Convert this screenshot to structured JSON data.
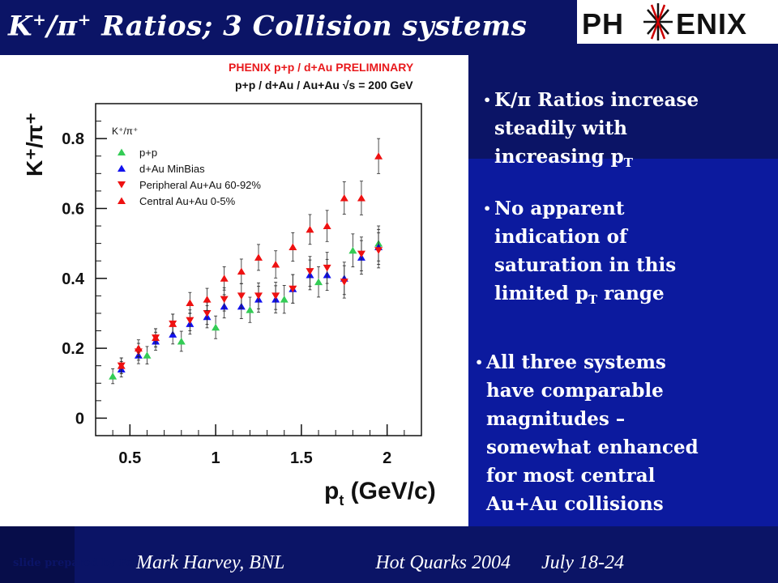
{
  "slide": {
    "title_main": "K",
    "title_sup1": "+",
    "title_slash": "/",
    "title_pi": "π",
    "title_sup2": "+",
    "title_rest": " Ratios; 3 Collision systems",
    "logo_left": "PH",
    "logo_right": "ENIX",
    "credit": "slide prepared by Felix Matathias",
    "bullet1_line1": "K/π Ratios increase",
    "bullet1_line2": "steadily with",
    "bullet1_line3": "increasing p",
    "bullet1_sub": "T",
    "bullet2_line1": "No apparent",
    "bullet2_line2": "indication of",
    "bullet2_line3": "saturation in this",
    "bullet2_line4_a": "limited p",
    "bullet2_line4_sub": "T",
    "bullet2_line4_b": " range",
    "bullet3_line1": "All three systems",
    "bullet3_line2": "have comparable",
    "bullet3_line3": "magnitudes –",
    "bullet3_line4": "somewhat enhanced",
    "bullet3_line5": "for most central",
    "bullet3_line6": "Au+Au collisions",
    "bullet_marker": "•",
    "footer_author": "Mark Harvey, BNL",
    "footer_event": "Hot Quarks 2004",
    "footer_date": "July 18-24"
  },
  "chart_data": {
    "type": "scatter",
    "title": "PHENIX p+p / d+Au PRELIMINARY",
    "subtitle": "p+p / d+Au / Au+Au  √s = 200 GeV",
    "xlabel": "p",
    "xlabel_sub": "t",
    "xlabel_unit": " (GeV/c)",
    "ylabel": "K⁺/π⁺",
    "legend_title": "K⁺/π⁺",
    "legend_placement": "top-left",
    "xlim": [
      0.3,
      2.2
    ],
    "ylim": [
      -0.05,
      0.9
    ],
    "xticks": [
      "0.5",
      "1",
      "1.5",
      "2"
    ],
    "yticks": [
      "0",
      "0.2",
      "0.4",
      "0.6",
      "0.8"
    ],
    "series": [
      {
        "name": "p+p",
        "color": "#33cc55",
        "marker": "triangle-up",
        "x": [
          0.4,
          0.6,
          0.8,
          1.0,
          1.2,
          1.4,
          1.6,
          1.8,
          1.95
        ],
        "y": [
          0.12,
          0.18,
          0.22,
          0.26,
          0.31,
          0.34,
          0.39,
          0.48,
          0.5
        ]
      },
      {
        "name": "d+Au MinBias",
        "color": "#1111ee",
        "marker": "triangle-up",
        "x": [
          0.45,
          0.55,
          0.65,
          0.75,
          0.85,
          0.95,
          1.05,
          1.15,
          1.25,
          1.35,
          1.45,
          1.55,
          1.65,
          1.75,
          1.85,
          1.95
        ],
        "y": [
          0.14,
          0.18,
          0.22,
          0.24,
          0.27,
          0.29,
          0.32,
          0.32,
          0.34,
          0.34,
          0.37,
          0.41,
          0.41,
          0.4,
          0.46,
          0.49
        ]
      },
      {
        "name": "Peripheral Au+Au 60-92%",
        "color": "#ee1111",
        "marker": "triangle-down",
        "x": [
          0.45,
          0.55,
          0.65,
          0.75,
          0.85,
          0.95,
          1.05,
          1.15,
          1.25,
          1.35,
          1.45,
          1.55,
          1.65,
          1.75,
          1.85,
          1.95
        ],
        "y": [
          0.15,
          0.19,
          0.23,
          0.27,
          0.28,
          0.3,
          0.34,
          0.35,
          0.35,
          0.35,
          0.37,
          0.42,
          0.43,
          0.39,
          0.47,
          0.48
        ]
      },
      {
        "name": "Central    Au+Au 0-5%",
        "color": "#ee1111",
        "marker": "triangle-up",
        "x": [
          0.45,
          0.55,
          0.65,
          0.75,
          0.85,
          0.95,
          1.05,
          1.15,
          1.25,
          1.35,
          1.45,
          1.55,
          1.65,
          1.75,
          1.85,
          1.95
        ],
        "y": [
          0.15,
          0.2,
          0.23,
          0.27,
          0.33,
          0.34,
          0.4,
          0.42,
          0.46,
          0.44,
          0.49,
          0.54,
          0.55,
          0.63,
          0.63,
          0.75
        ]
      }
    ]
  }
}
